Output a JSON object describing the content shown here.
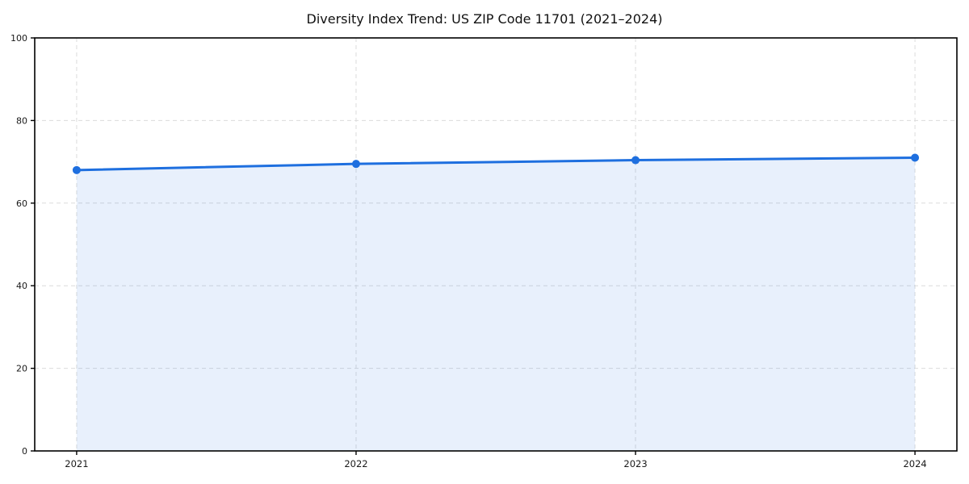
{
  "figure": {
    "title": "Diversity Index Trend: US ZIP Code 11701 (2021–2024)"
  },
  "chart_data": {
    "type": "line",
    "title": "Diversity Index Trend: US ZIP Code 11701 (2021–2024)",
    "categories": [
      "2021",
      "2022",
      "2023",
      "2024"
    ],
    "series": [
      {
        "name": "Diversity Index",
        "values": [
          68.0,
          69.5,
          70.4,
          71.0
        ]
      }
    ],
    "xlabel": "",
    "ylabel": "",
    "ylim": [
      0,
      100
    ],
    "yticks": [
      0,
      20,
      40,
      60,
      80,
      100
    ],
    "grid": true,
    "grid_style": "dashed",
    "legend": "none",
    "area_fill": true,
    "markers": true,
    "colors": {
      "line": "#1e6fdf",
      "marker": "#1e6fdf",
      "area": "rgba(30,111,223,0.10)",
      "grid": "#dcdcdc",
      "spine": "#000000",
      "tick_label": "#1a1a1a",
      "background": "#ffffff"
    }
  }
}
